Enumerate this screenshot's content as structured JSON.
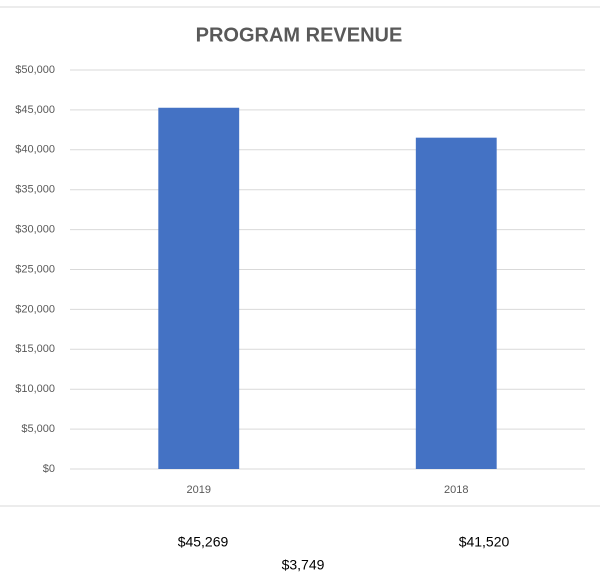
{
  "chart_data": {
    "type": "bar",
    "title": "PROGRAM REVENUE",
    "categories": [
      "2019",
      "2018"
    ],
    "values": [
      45269,
      41520
    ],
    "color": "#4472c4",
    "ylim": [
      0,
      50000
    ],
    "yticks": [
      {
        "value": 0,
        "label": "$0"
      },
      {
        "value": 5000,
        "label": "$5,000"
      },
      {
        "value": 10000,
        "label": "$10,000"
      },
      {
        "value": 15000,
        "label": "$15,000"
      },
      {
        "value": 20000,
        "label": "$20,000"
      },
      {
        "value": 25000,
        "label": "$25,000"
      },
      {
        "value": 30000,
        "label": "$30,000"
      },
      {
        "value": 35000,
        "label": "$35,000"
      },
      {
        "value": 40000,
        "label": "$40,000"
      },
      {
        "value": 45000,
        "label": "$45,000"
      },
      {
        "value": 50000,
        "label": "$50,000"
      }
    ],
    "grid": true,
    "annotations": [
      "$45,269",
      "$41,520",
      "$3,749"
    ]
  }
}
